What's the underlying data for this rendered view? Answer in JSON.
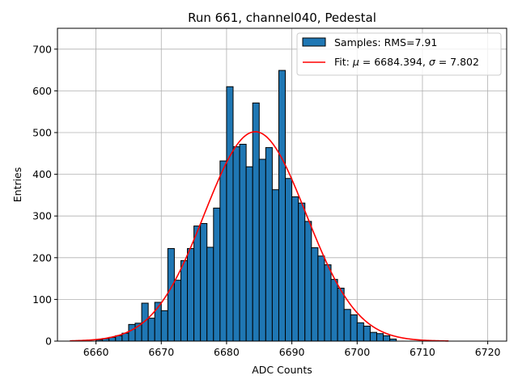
{
  "chart_data": {
    "type": "bar",
    "title": "Run 661, channel040, Pedestal",
    "xlabel": "ADC Counts",
    "ylabel": "Entries",
    "xlim": [
      6654.1,
      6722.9
    ],
    "ylim": [
      0,
      750
    ],
    "xticks": [
      6660,
      6670,
      6680,
      6690,
      6700,
      6710,
      6720
    ],
    "yticks": [
      0,
      100,
      200,
      300,
      400,
      500,
      600,
      700
    ],
    "grid": true,
    "legend_position": "top-right",
    "histogram": {
      "name": "Samples: RMS=7.91",
      "bin_width": 1,
      "bin_edges_start": 6660,
      "counts": [
        3,
        6,
        9,
        13,
        19,
        40,
        43,
        91,
        55,
        93,
        73,
        222,
        146,
        193,
        222,
        276,
        282,
        225,
        319,
        432,
        610,
        466,
        472,
        418,
        571,
        436,
        464,
        363,
        649,
        390,
        346,
        331,
        287,
        224,
        204,
        183,
        148,
        127,
        76,
        63,
        44,
        36,
        21,
        18,
        13,
        5
      ]
    },
    "fit": {
      "name": "Fit: $\\mu$ = 6684.394, $\\sigma$ = 7.802",
      "mu": 6684.394,
      "sigma": 7.802,
      "amplitude": 502,
      "x_range": [
        6656,
        6714
      ]
    },
    "colors": {
      "bar_fill": "#1f77b4",
      "bar_edge": "#000000",
      "fit_line": "#ff0000",
      "grid": "#b0b0b0"
    }
  }
}
